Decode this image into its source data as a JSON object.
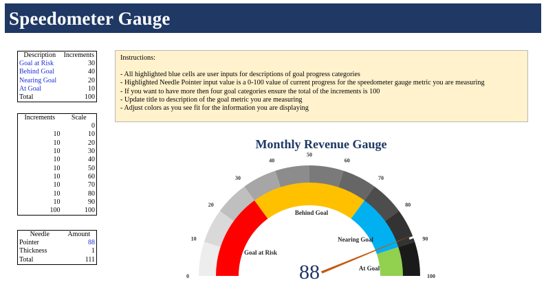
{
  "header": {
    "title": "Speedometer Gauge"
  },
  "description_table": {
    "headers": [
      "Description",
      "Increments"
    ],
    "rows": [
      {
        "label": "Goal at Risk",
        "value": "30"
      },
      {
        "label": "Behind Goal",
        "value": "40"
      },
      {
        "label": "Nearing Goal",
        "value": "20"
      },
      {
        "label": "At Goal",
        "value": "10"
      },
      {
        "label": "Total",
        "value": "100"
      }
    ]
  },
  "scale_table": {
    "headers": [
      "Increments",
      "Scale"
    ],
    "rows": [
      [
        "",
        "0"
      ],
      [
        "10",
        "10"
      ],
      [
        "10",
        "20"
      ],
      [
        "10",
        "30"
      ],
      [
        "10",
        "40"
      ],
      [
        "10",
        "50"
      ],
      [
        "10",
        "60"
      ],
      [
        "10",
        "70"
      ],
      [
        "10",
        "80"
      ],
      [
        "10",
        "90"
      ],
      [
        "100",
        "100"
      ]
    ]
  },
  "needle_table": {
    "headers": [
      "Needle",
      "Amount"
    ],
    "rows": [
      {
        "label": "Pointer",
        "value": "88"
      },
      {
        "label": "Thickness",
        "value": "1"
      },
      {
        "label": "Total",
        "value": "111"
      }
    ]
  },
  "instructions": {
    "heading": "Instructions:",
    "items": [
      "- All highlighted blue cells are user inputs for descriptions of goal progress categories",
      "- Highlighted Needle Pointer input value is a 0-100 value of current progress for the speedometer gauge metric you are measuring",
      "- If you want to have more then four goal categories ensure the total of the increments is 100",
      "- Update title to description of the goal metric you are measuring",
      "- Adjust colors as you see fit for the information you are displaying"
    ]
  },
  "gauge": {
    "title": "Monthly Revenue Gauge",
    "value_display": "88",
    "pointer": 88,
    "thickness": 1,
    "scale_labels": [
      "0",
      "10",
      "20",
      "30",
      "40",
      "50",
      "60",
      "70",
      "80",
      "90",
      "100"
    ],
    "outer_colors": [
      "#ededed",
      "#d9d9d9",
      "#bfbfbf",
      "#a6a6a6",
      "#8c8c8c",
      "#7a7a7a",
      "#666666",
      "#4d4d4d",
      "#333333",
      "#1a1a1a"
    ],
    "categories": [
      {
        "name": "Goal at Risk",
        "increment": 30,
        "color": "#ff0000"
      },
      {
        "name": "Behind Goal",
        "increment": 40,
        "color": "#ffc000"
      },
      {
        "name": "Nearing Goal",
        "increment": 20,
        "color": "#00b0f0"
      },
      {
        "name": "At Goal",
        "increment": 10,
        "color": "#92d050"
      }
    ],
    "needle_color": "#c55a11",
    "value_color": "#1f3864"
  }
}
